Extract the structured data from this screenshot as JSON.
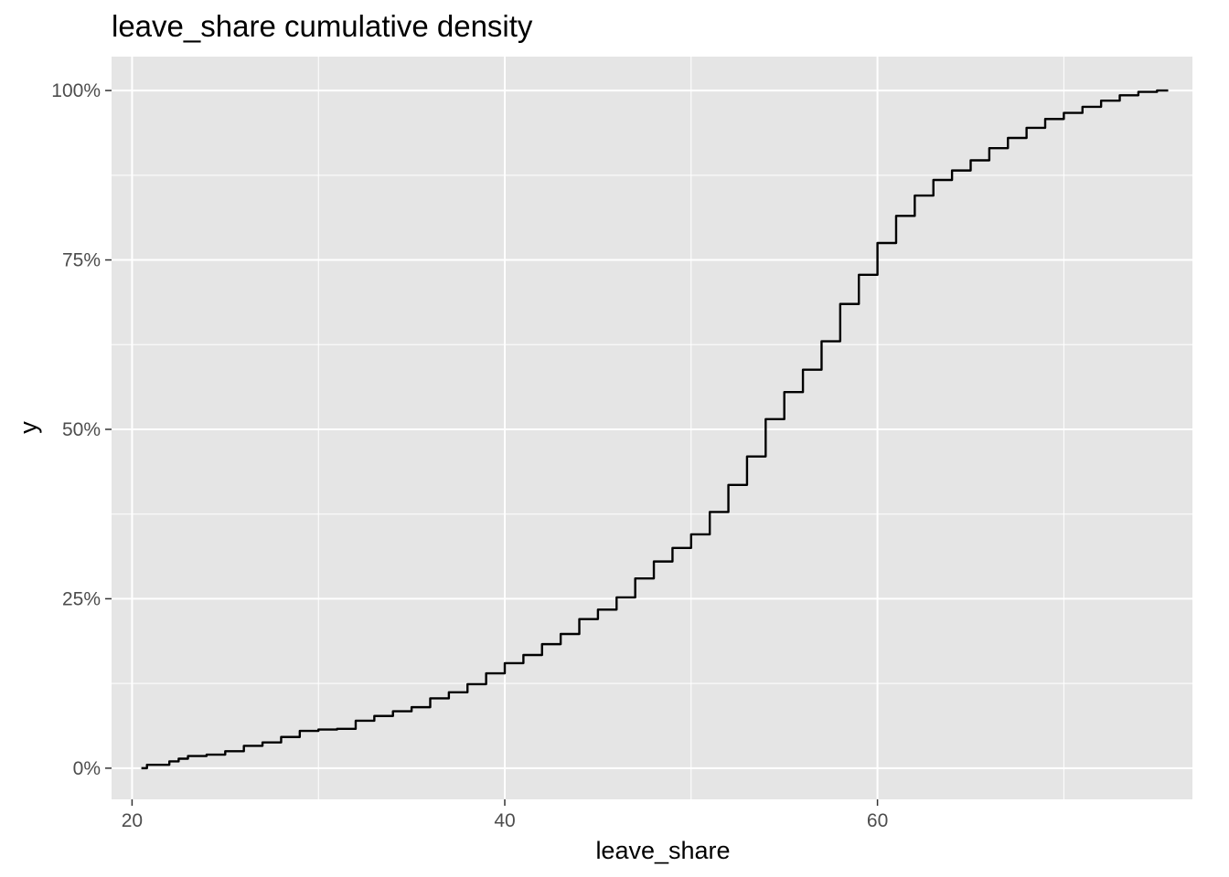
{
  "chart_data": {
    "type": "line",
    "title": "leave_share cumulative density",
    "xlabel": "leave_share",
    "ylabel": "y",
    "xlim": [
      18.9,
      76.9
    ],
    "ylim": [
      -0.046,
      1.05
    ],
    "x_ticks": [
      20,
      40,
      60
    ],
    "x_tick_labels": [
      "20",
      "40",
      "60"
    ],
    "x_minor_ticks": [
      30,
      50,
      70
    ],
    "y_ticks": [
      0,
      0.25,
      0.5,
      0.75,
      1.0
    ],
    "y_tick_labels": [
      "0%",
      "25%",
      "50%",
      "75%",
      "100%"
    ],
    "y_minor_ticks": [
      0.125,
      0.375,
      0.625,
      0.875
    ],
    "grid": true,
    "legend": "none",
    "colors": {
      "panel_background": "#e5e5e5",
      "grid": "#ffffff",
      "line": "#000000",
      "tick_label": "#4d4d4d",
      "tick_mark": "#333333"
    },
    "series": [
      {
        "x": [
          20.5,
          20.8,
          21.5,
          22.0,
          22.5,
          23.0,
          24.0,
          25.0,
          26.0,
          27.0,
          28.0,
          29.0,
          30.0,
          31.0,
          32.0,
          33.0,
          34.0,
          35.0,
          36.0,
          37.0,
          38.0,
          39.0,
          40.0,
          41.0,
          42.0,
          43.0,
          44.0,
          45.0,
          46.0,
          47.0,
          48.0,
          49.0,
          50.0,
          51.0,
          52.0,
          53.0,
          54.0,
          55.0,
          56.0,
          57.0,
          58.0,
          59.0,
          60.0,
          61.0,
          62.0,
          63.0,
          64.0,
          65.0,
          66.0,
          67.0,
          68.0,
          69.0,
          70.0,
          71.0,
          72.0,
          73.0,
          74.0,
          75.0,
          75.6
        ],
        "y": [
          0.0,
          0.005,
          0.005,
          0.01,
          0.014,
          0.018,
          0.02,
          0.025,
          0.033,
          0.038,
          0.046,
          0.055,
          0.057,
          0.058,
          0.07,
          0.077,
          0.084,
          0.09,
          0.103,
          0.112,
          0.124,
          0.14,
          0.155,
          0.167,
          0.183,
          0.198,
          0.22,
          0.234,
          0.252,
          0.28,
          0.305,
          0.325,
          0.345,
          0.378,
          0.418,
          0.46,
          0.515,
          0.555,
          0.588,
          0.63,
          0.685,
          0.728,
          0.775,
          0.815,
          0.845,
          0.868,
          0.882,
          0.897,
          0.915,
          0.93,
          0.945,
          0.958,
          0.967,
          0.976,
          0.985,
          0.993,
          0.998,
          1.0,
          1.0
        ]
      }
    ]
  }
}
